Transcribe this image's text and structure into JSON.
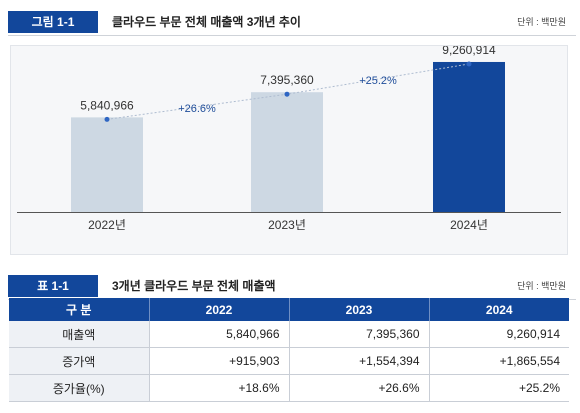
{
  "figure": {
    "badge": "그림  1-1",
    "title": "클라우드 부문 전체 매출액 3개년 추이",
    "unit": "단위 : 백만원"
  },
  "chart_data": {
    "type": "bar",
    "categories": [
      "2022년",
      "2023년",
      "2024년"
    ],
    "values": [
      5840966,
      7395360,
      9260914
    ],
    "value_labels": [
      "5,840,966",
      "7,395,360",
      "9,260,914"
    ],
    "growth_labels": [
      "+26.6%",
      "+25.2%"
    ],
    "bar_colors": [
      "#cdd8e3",
      "#cdd8e3",
      "#12479b"
    ],
    "trend_color": "#2f66c3",
    "ylim": [
      0,
      10000000
    ],
    "grid": false,
    "legend": "none"
  },
  "table": {
    "badge": "표  1-1",
    "title": "3개년 클라우드 부문 전체 매출액",
    "unit": "단위 : 백만원",
    "headers": [
      "구 분",
      "2022",
      "2023",
      "2024"
    ],
    "rows": [
      {
        "label": "매출액",
        "cells": [
          "5,840,966",
          "7,395,360",
          "9,260,914"
        ]
      },
      {
        "label": "증가액",
        "cells": [
          "+915,903",
          "+1,554,394",
          "+1,865,554"
        ]
      },
      {
        "label": "증가율(%)",
        "cells": [
          "+18.6%",
          "+26.6%",
          "+25.2%"
        ]
      }
    ]
  }
}
